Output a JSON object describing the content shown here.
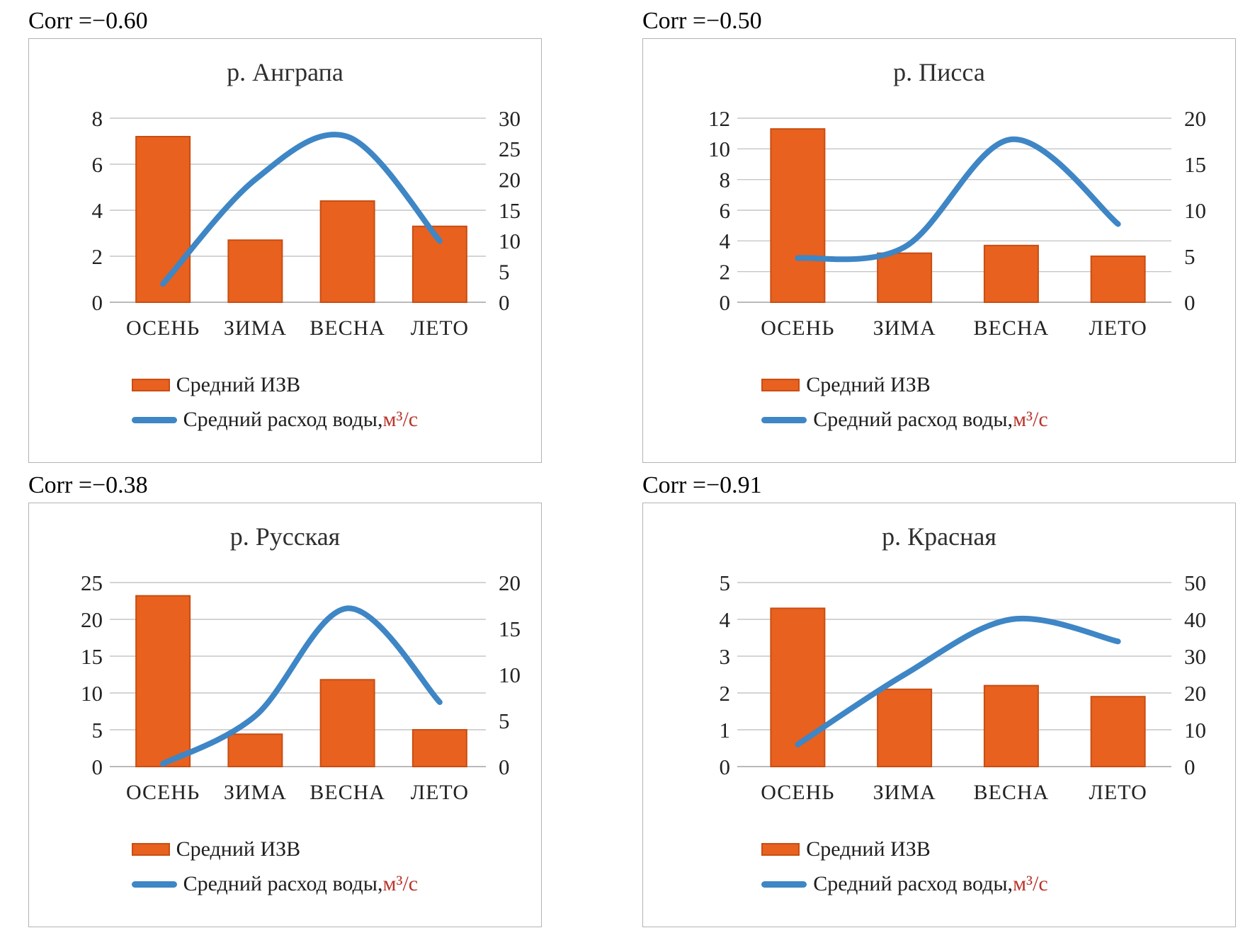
{
  "colors": {
    "bar_fill": "#e8611e",
    "bar_border": "#c84e13",
    "line": "#3e86c5",
    "gridline": "#c6c6c6",
    "baseline": "#a3a3a3",
    "box_border": "#b3b3b3",
    "text": "#222222",
    "unit_red": "#b7352c"
  },
  "chart_data": [
    {
      "type": "bar-line-combo",
      "title": "р. Анграпа",
      "corr_label": "Corr =−0.60",
      "categories": [
        "ОСЕНЬ",
        "ЗИМА",
        "ВЕСНА",
        "ЛЕТО"
      ],
      "series": [
        {
          "name": "Средний ИЗВ",
          "type": "bar",
          "axis": "left",
          "values": [
            7.2,
            2.7,
            4.4,
            3.3
          ]
        },
        {
          "name": "Средний расход воды, м³/с",
          "type": "line",
          "axis": "right",
          "values": [
            3,
            20,
            27,
            10
          ]
        }
      ],
      "left_axis": {
        "range": [
          0,
          8
        ],
        "ticks": [
          0,
          2,
          4,
          6,
          8
        ]
      },
      "right_axis": {
        "range": [
          0,
          30
        ],
        "ticks": [
          0,
          5,
          10,
          15,
          20,
          25,
          30
        ]
      },
      "legend": {
        "bar_label": "Средний ИЗВ",
        "line_label_text": "Средний расход воды, ",
        "line_label_unit": "м³/с"
      }
    },
    {
      "type": "bar-line-combo",
      "title": "р. Писса",
      "corr_label": "Corr =−0.50",
      "categories": [
        "ОСЕНЬ",
        "ЗИМА",
        "ВЕСНА",
        "ЛЕТО"
      ],
      "series": [
        {
          "name": "Средний ИЗВ",
          "type": "bar",
          "axis": "left",
          "values": [
            11.3,
            3.2,
            3.7,
            3.0
          ]
        },
        {
          "name": "Средний расход воды, м³/с",
          "type": "line",
          "axis": "right",
          "values": [
            4.8,
            6,
            17.7,
            8.5
          ]
        }
      ],
      "left_axis": {
        "range": [
          0,
          12
        ],
        "ticks": [
          0,
          2,
          4,
          6,
          8,
          10,
          12
        ]
      },
      "right_axis": {
        "range": [
          0,
          20
        ],
        "ticks": [
          0,
          5,
          10,
          15,
          20
        ]
      },
      "legend": {
        "bar_label": "Средний ИЗВ",
        "line_label_text": "Средний расход воды, ",
        "line_label_unit": "м³/с"
      }
    },
    {
      "type": "bar-line-combo",
      "title": "р. Русская",
      "corr_label": "Corr =−0.38",
      "categories": [
        "ОСЕНЬ",
        "ЗИМА",
        "ВЕСНА",
        "ЛЕТО"
      ],
      "series": [
        {
          "name": "Средний ИЗВ",
          "type": "bar",
          "axis": "left",
          "values": [
            23.2,
            4.4,
            11.8,
            5.0
          ]
        },
        {
          "name": "Средний расход воды, м³/с",
          "type": "line",
          "axis": "right",
          "values": [
            0.3,
            5.5,
            17.2,
            7
          ]
        }
      ],
      "left_axis": {
        "range": [
          0,
          25
        ],
        "ticks": [
          0,
          5,
          10,
          15,
          20,
          25
        ]
      },
      "right_axis": {
        "range": [
          0,
          20
        ],
        "ticks": [
          0,
          5,
          10,
          15,
          20
        ]
      },
      "legend": {
        "bar_label": "Средний ИЗВ",
        "line_label_text": "Средний расход воды, ",
        "line_label_unit": "м³/с"
      }
    },
    {
      "type": "bar-line-combo",
      "title": "р. Красная",
      "corr_label": "Corr =−0.91",
      "categories": [
        "ОСЕНЬ",
        "ЗИМА",
        "ВЕСНА",
        "ЛЕТО"
      ],
      "series": [
        {
          "name": "Средний ИЗВ",
          "type": "bar",
          "axis": "left",
          "values": [
            4.3,
            2.1,
            2.2,
            1.9
          ]
        },
        {
          "name": "Средний расход воды, м³/с",
          "type": "line",
          "axis": "right",
          "values": [
            6,
            25,
            40,
            34
          ]
        }
      ],
      "left_axis": {
        "range": [
          0,
          5
        ],
        "ticks": [
          0,
          1,
          2,
          3,
          4,
          5
        ]
      },
      "right_axis": {
        "range": [
          0,
          50
        ],
        "ticks": [
          0,
          10,
          20,
          30,
          40,
          50
        ]
      },
      "legend": {
        "bar_label": "Средний ИЗВ",
        "line_label_text": "Средний расход воды, ",
        "line_label_unit": "м³/с"
      }
    }
  ]
}
